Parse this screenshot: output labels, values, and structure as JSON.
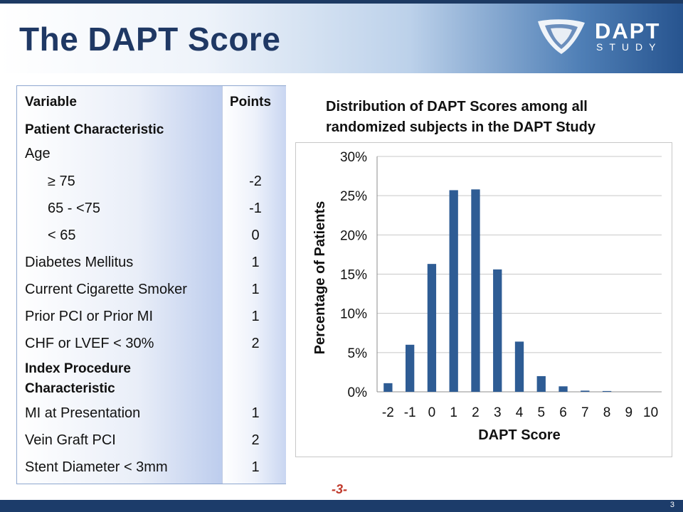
{
  "slide": {
    "title": "The DAPT Score",
    "logo_primary": "DAPT",
    "logo_secondary": "STUDY",
    "page_mark": "-3-",
    "page_number": "3"
  },
  "table": {
    "header_variable": "Variable",
    "header_points": "Points",
    "rows": [
      {
        "label": "Patient Characteristic",
        "points": ""
      },
      {
        "label": "Age",
        "points": ""
      },
      {
        "label": "≥ 75",
        "points": "-2"
      },
      {
        "label": "65 - <75",
        "points": "-1"
      },
      {
        "label": "< 65",
        "points": "0"
      },
      {
        "label": "Diabetes Mellitus",
        "points": "1"
      },
      {
        "label": "Current Cigarette Smoker",
        "points": "1"
      },
      {
        "label": "Prior PCI or Prior MI",
        "points": "1"
      },
      {
        "label": "CHF or LVEF < 30%",
        "points": "2"
      },
      {
        "label": "Index Procedure",
        "points": ""
      },
      {
        "label": "Characteristic",
        "points": ""
      },
      {
        "label": "MI at Presentation",
        "points": "1"
      },
      {
        "label": "Vein Graft PCI",
        "points": "2"
      },
      {
        "label": "Stent Diameter < 3mm",
        "points": "1"
      }
    ]
  },
  "chart_data": {
    "type": "bar",
    "title_line1": "Distribution of DAPT Scores among all",
    "title_line2": "randomized subjects in the DAPT Study",
    "xlabel": "DAPT Score",
    "ylabel": "Percentage of Patients",
    "categories": [
      "-2",
      "-1",
      "0",
      "1",
      "2",
      "3",
      "4",
      "5",
      "6",
      "7",
      "8",
      "9",
      "10"
    ],
    "values": [
      1.1,
      6.0,
      16.3,
      25.7,
      25.8,
      15.6,
      6.4,
      2.0,
      0.7,
      0.15,
      0.1,
      0.0,
      0.0
    ],
    "ylim": [
      0,
      30
    ],
    "yticks": [
      "0%",
      "5%",
      "10%",
      "15%",
      "20%",
      "25%",
      "30%"
    ],
    "ytick_values": [
      0,
      5,
      10,
      15,
      20,
      25,
      30
    ],
    "grid": true,
    "bar_color": "#2e5c94"
  }
}
